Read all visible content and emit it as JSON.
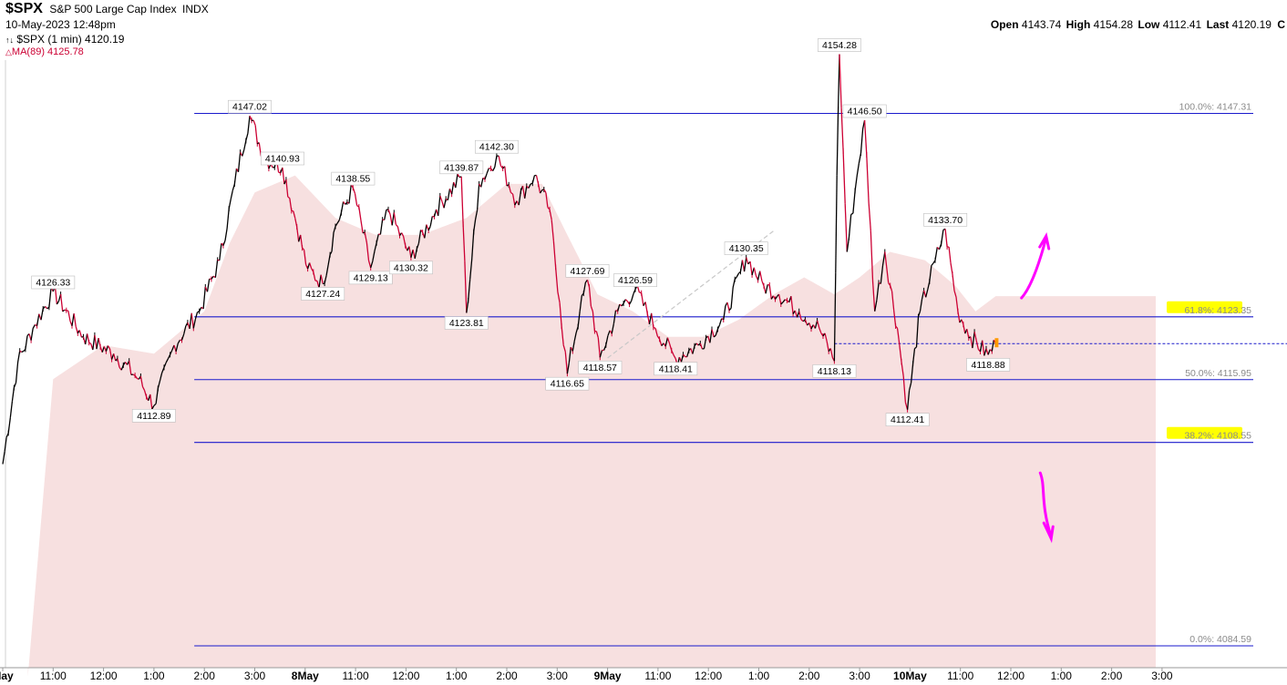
{
  "header": {
    "symbol": "$SPX",
    "name": "S&P 500 Large Cap Index",
    "exchange": "INDX",
    "datetime": "10-May-2023 12:48pm",
    "series_line": "$SPX (1 min) 4120.19",
    "ma_line": "MA(89) 4125.78",
    "ohlc": {
      "open_label": "Open",
      "open": "4143.74",
      "high_label": "High",
      "high": "4154.28",
      "low_label": "Low",
      "low": "4112.41",
      "last_label": "Last",
      "last": "4120.19",
      "trailing": "C"
    }
  },
  "colors": {
    "price_up": "#000000",
    "price_down": "#cc0033",
    "ma_fill": "#f7e0e0",
    "fib_line": "#1a1acc",
    "last_price_line": "#1a1acc",
    "highlight": "#ffff00",
    "arrow": "#ff00ff",
    "trendline": "#c8c8c8"
  },
  "chart_data": {
    "type": "line",
    "series": [
      {
        "name": "$SPX (1 min)",
        "last": 4120.19
      },
      {
        "name": "MA(89)",
        "last": 4125.78
      }
    ],
    "x_ticks": [
      "May",
      "11:00",
      "12:00",
      "1:00",
      "2:00",
      "3:00",
      "8May",
      "11:00",
      "12:00",
      "1:00",
      "2:00",
      "3:00",
      "9May",
      "11:00",
      "12:00",
      "1:00",
      "2:00",
      "3:00",
      "10May",
      "11:00",
      "12:00",
      "1:00",
      "2:00",
      "3:00"
    ],
    "bold_ticks": [
      "May",
      "8May",
      "9May",
      "10May"
    ],
    "ylim": [
      4080,
      4157
    ],
    "price_path": [
      {
        "t": 0,
        "v": 4106
      },
      {
        "t": 0.3,
        "v": 4118
      },
      {
        "t": 0.6,
        "v": 4122
      },
      {
        "t": 1.0,
        "v": 4126.33
      },
      {
        "t": 1.6,
        "v": 4121
      },
      {
        "t": 2.2,
        "v": 4119
      },
      {
        "t": 2.7,
        "v": 4116
      },
      {
        "t": 3.0,
        "v": 4112.89
      },
      {
        "t": 3.4,
        "v": 4120
      },
      {
        "t": 3.9,
        "v": 4124
      },
      {
        "t": 4.3,
        "v": 4130
      },
      {
        "t": 4.6,
        "v": 4139
      },
      {
        "t": 4.9,
        "v": 4147.02
      },
      {
        "t": 5.2,
        "v": 4142
      },
      {
        "t": 5.55,
        "v": 4140.93
      },
      {
        "t": 5.8,
        "v": 4135
      },
      {
        "t": 6.05,
        "v": 4129
      },
      {
        "t": 6.35,
        "v": 4127.24
      },
      {
        "t": 6.6,
        "v": 4134
      },
      {
        "t": 6.95,
        "v": 4138.55
      },
      {
        "t": 7.3,
        "v": 4129.13
      },
      {
        "t": 7.65,
        "v": 4136
      },
      {
        "t": 8.1,
        "v": 4130.32
      },
      {
        "t": 8.6,
        "v": 4136
      },
      {
        "t": 9.1,
        "v": 4139.87
      },
      {
        "t": 9.2,
        "v": 4123.81
      },
      {
        "t": 9.45,
        "v": 4139
      },
      {
        "t": 9.8,
        "v": 4142.3
      },
      {
        "t": 10.2,
        "v": 4137
      },
      {
        "t": 10.55,
        "v": 4140
      },
      {
        "t": 10.85,
        "v": 4136
      },
      {
        "t": 11.05,
        "v": 4125
      },
      {
        "t": 11.2,
        "v": 4116.65
      },
      {
        "t": 11.45,
        "v": 4124
      },
      {
        "t": 11.6,
        "v": 4127.69
      },
      {
        "t": 11.85,
        "v": 4118.57
      },
      {
        "t": 12.2,
        "v": 4124
      },
      {
        "t": 12.55,
        "v": 4126.59
      },
      {
        "t": 12.95,
        "v": 4122
      },
      {
        "t": 13.35,
        "v": 4118.41
      },
      {
        "t": 13.8,
        "v": 4120
      },
      {
        "t": 14.3,
        "v": 4123
      },
      {
        "t": 14.75,
        "v": 4130.35
      },
      {
        "t": 15.1,
        "v": 4127
      },
      {
        "t": 15.4,
        "v": 4126
      },
      {
        "t": 15.8,
        "v": 4124
      },
      {
        "t": 16.2,
        "v": 4122
      },
      {
        "t": 16.5,
        "v": 4118.13
      },
      {
        "t": 16.55,
        "v": 4140
      },
      {
        "t": 16.6,
        "v": 4154.28
      },
      {
        "t": 16.75,
        "v": 4131
      },
      {
        "t": 16.95,
        "v": 4140
      },
      {
        "t": 17.1,
        "v": 4146.5
      },
      {
        "t": 17.3,
        "v": 4124
      },
      {
        "t": 17.5,
        "v": 4131
      },
      {
        "t": 17.75,
        "v": 4122
      },
      {
        "t": 17.95,
        "v": 4112.41
      },
      {
        "t": 18.2,
        "v": 4124
      },
      {
        "t": 18.5,
        "v": 4130
      },
      {
        "t": 18.7,
        "v": 4133.7
      },
      {
        "t": 18.95,
        "v": 4124
      },
      {
        "t": 19.2,
        "v": 4121
      },
      {
        "t": 19.55,
        "v": 4118.88
      },
      {
        "t": 19.7,
        "v": 4120.19
      }
    ],
    "ma_path": [
      {
        "t": 0.5,
        "v": 4081
      },
      {
        "t": 1.0,
        "v": 4116
      },
      {
        "t": 2.0,
        "v": 4120
      },
      {
        "t": 3.0,
        "v": 4119
      },
      {
        "t": 4.0,
        "v": 4124
      },
      {
        "t": 4.5,
        "v": 4132
      },
      {
        "t": 5.0,
        "v": 4138
      },
      {
        "t": 5.8,
        "v": 4140
      },
      {
        "t": 6.6,
        "v": 4135
      },
      {
        "t": 7.4,
        "v": 4133
      },
      {
        "t": 8.3,
        "v": 4133
      },
      {
        "t": 9.2,
        "v": 4135
      },
      {
        "t": 10.0,
        "v": 4139
      },
      {
        "t": 10.7,
        "v": 4139
      },
      {
        "t": 11.2,
        "v": 4133
      },
      {
        "t": 11.8,
        "v": 4126
      },
      {
        "t": 12.5,
        "v": 4124
      },
      {
        "t": 13.2,
        "v": 4121
      },
      {
        "t": 13.9,
        "v": 4121
      },
      {
        "t": 14.6,
        "v": 4123
      },
      {
        "t": 15.3,
        "v": 4126
      },
      {
        "t": 15.9,
        "v": 4128
      },
      {
        "t": 16.5,
        "v": 4126
      },
      {
        "t": 17.0,
        "v": 4128
      },
      {
        "t": 17.6,
        "v": 4131
      },
      {
        "t": 18.3,
        "v": 4130
      },
      {
        "t": 18.9,
        "v": 4127
      },
      {
        "t": 19.3,
        "v": 4124
      },
      {
        "t": 19.7,
        "v": 4125.78
      }
    ],
    "peak_labels": [
      {
        "label": "4126.33",
        "t": 1.0,
        "v": 4126.33,
        "pos": "above"
      },
      {
        "label": "4112.89",
        "t": 3.0,
        "v": 4112.89,
        "pos": "below"
      },
      {
        "label": "4147.02",
        "t": 4.9,
        "v": 4147.02,
        "pos": "above"
      },
      {
        "label": "4140.93",
        "t": 5.55,
        "v": 4140.93,
        "pos": "above"
      },
      {
        "label": "4127.24",
        "t": 6.35,
        "v": 4127.24,
        "pos": "below"
      },
      {
        "label": "4138.55",
        "t": 6.95,
        "v": 4138.55,
        "pos": "above"
      },
      {
        "label": "4129.13",
        "t": 7.3,
        "v": 4129.13,
        "pos": "below"
      },
      {
        "label": "4130.32",
        "t": 8.1,
        "v": 4130.32,
        "pos": "below"
      },
      {
        "label": "4139.87",
        "t": 9.1,
        "v": 4139.87,
        "pos": "above"
      },
      {
        "label": "4123.81",
        "t": 9.2,
        "v": 4123.81,
        "pos": "below"
      },
      {
        "label": "4142.30",
        "t": 9.8,
        "v": 4142.3,
        "pos": "above"
      },
      {
        "label": "4116.65",
        "t": 11.2,
        "v": 4116.65,
        "pos": "below"
      },
      {
        "label": "4127.69",
        "t": 11.6,
        "v": 4127.69,
        "pos": "above"
      },
      {
        "label": "4118.57",
        "t": 11.85,
        "v": 4118.57,
        "pos": "below"
      },
      {
        "label": "4126.59",
        "t": 12.55,
        "v": 4126.59,
        "pos": "above"
      },
      {
        "label": "4118.41",
        "t": 13.35,
        "v": 4118.41,
        "pos": "below"
      },
      {
        "label": "4130.35",
        "t": 14.75,
        "v": 4130.35,
        "pos": "above"
      },
      {
        "label": "4118.13",
        "t": 16.5,
        "v": 4118.13,
        "pos": "below"
      },
      {
        "label": "4154.28",
        "t": 16.6,
        "v": 4154.28,
        "pos": "above"
      },
      {
        "label": "4146.50",
        "t": 17.1,
        "v": 4146.5,
        "pos": "above"
      },
      {
        "label": "4112.41",
        "t": 17.95,
        "v": 4112.41,
        "pos": "below"
      },
      {
        "label": "4133.70",
        "t": 18.7,
        "v": 4133.7,
        "pos": "above"
      },
      {
        "label": "4118.88",
        "t": 19.55,
        "v": 4118.88,
        "pos": "below"
      }
    ],
    "fib_levels": [
      {
        "label": "100.0%: 4147.31",
        "value": 4147.31,
        "highlight": false
      },
      {
        "label": "61.8%: 4123.35",
        "value": 4123.35,
        "highlight": true
      },
      {
        "label": "50.0%: 4115.95",
        "value": 4115.95,
        "highlight": false
      },
      {
        "label": "38.2%: 4108.55",
        "value": 4108.55,
        "highlight": true
      },
      {
        "label": "0.0%: 4084.59",
        "value": 4084.59,
        "highlight": false
      }
    ],
    "fib_start_t": 3.8,
    "last_price": 4120.19,
    "trendline": [
      {
        "t": 12.0,
        "v": 4118.5
      },
      {
        "t": 15.3,
        "v": 4133.5
      }
    ],
    "annotations": [
      {
        "kind": "arrow",
        "direction": "up",
        "t": 20.7,
        "v": 4126
      },
      {
        "kind": "arrow",
        "direction": "down",
        "t": 20.8,
        "v": 4104
      }
    ]
  }
}
